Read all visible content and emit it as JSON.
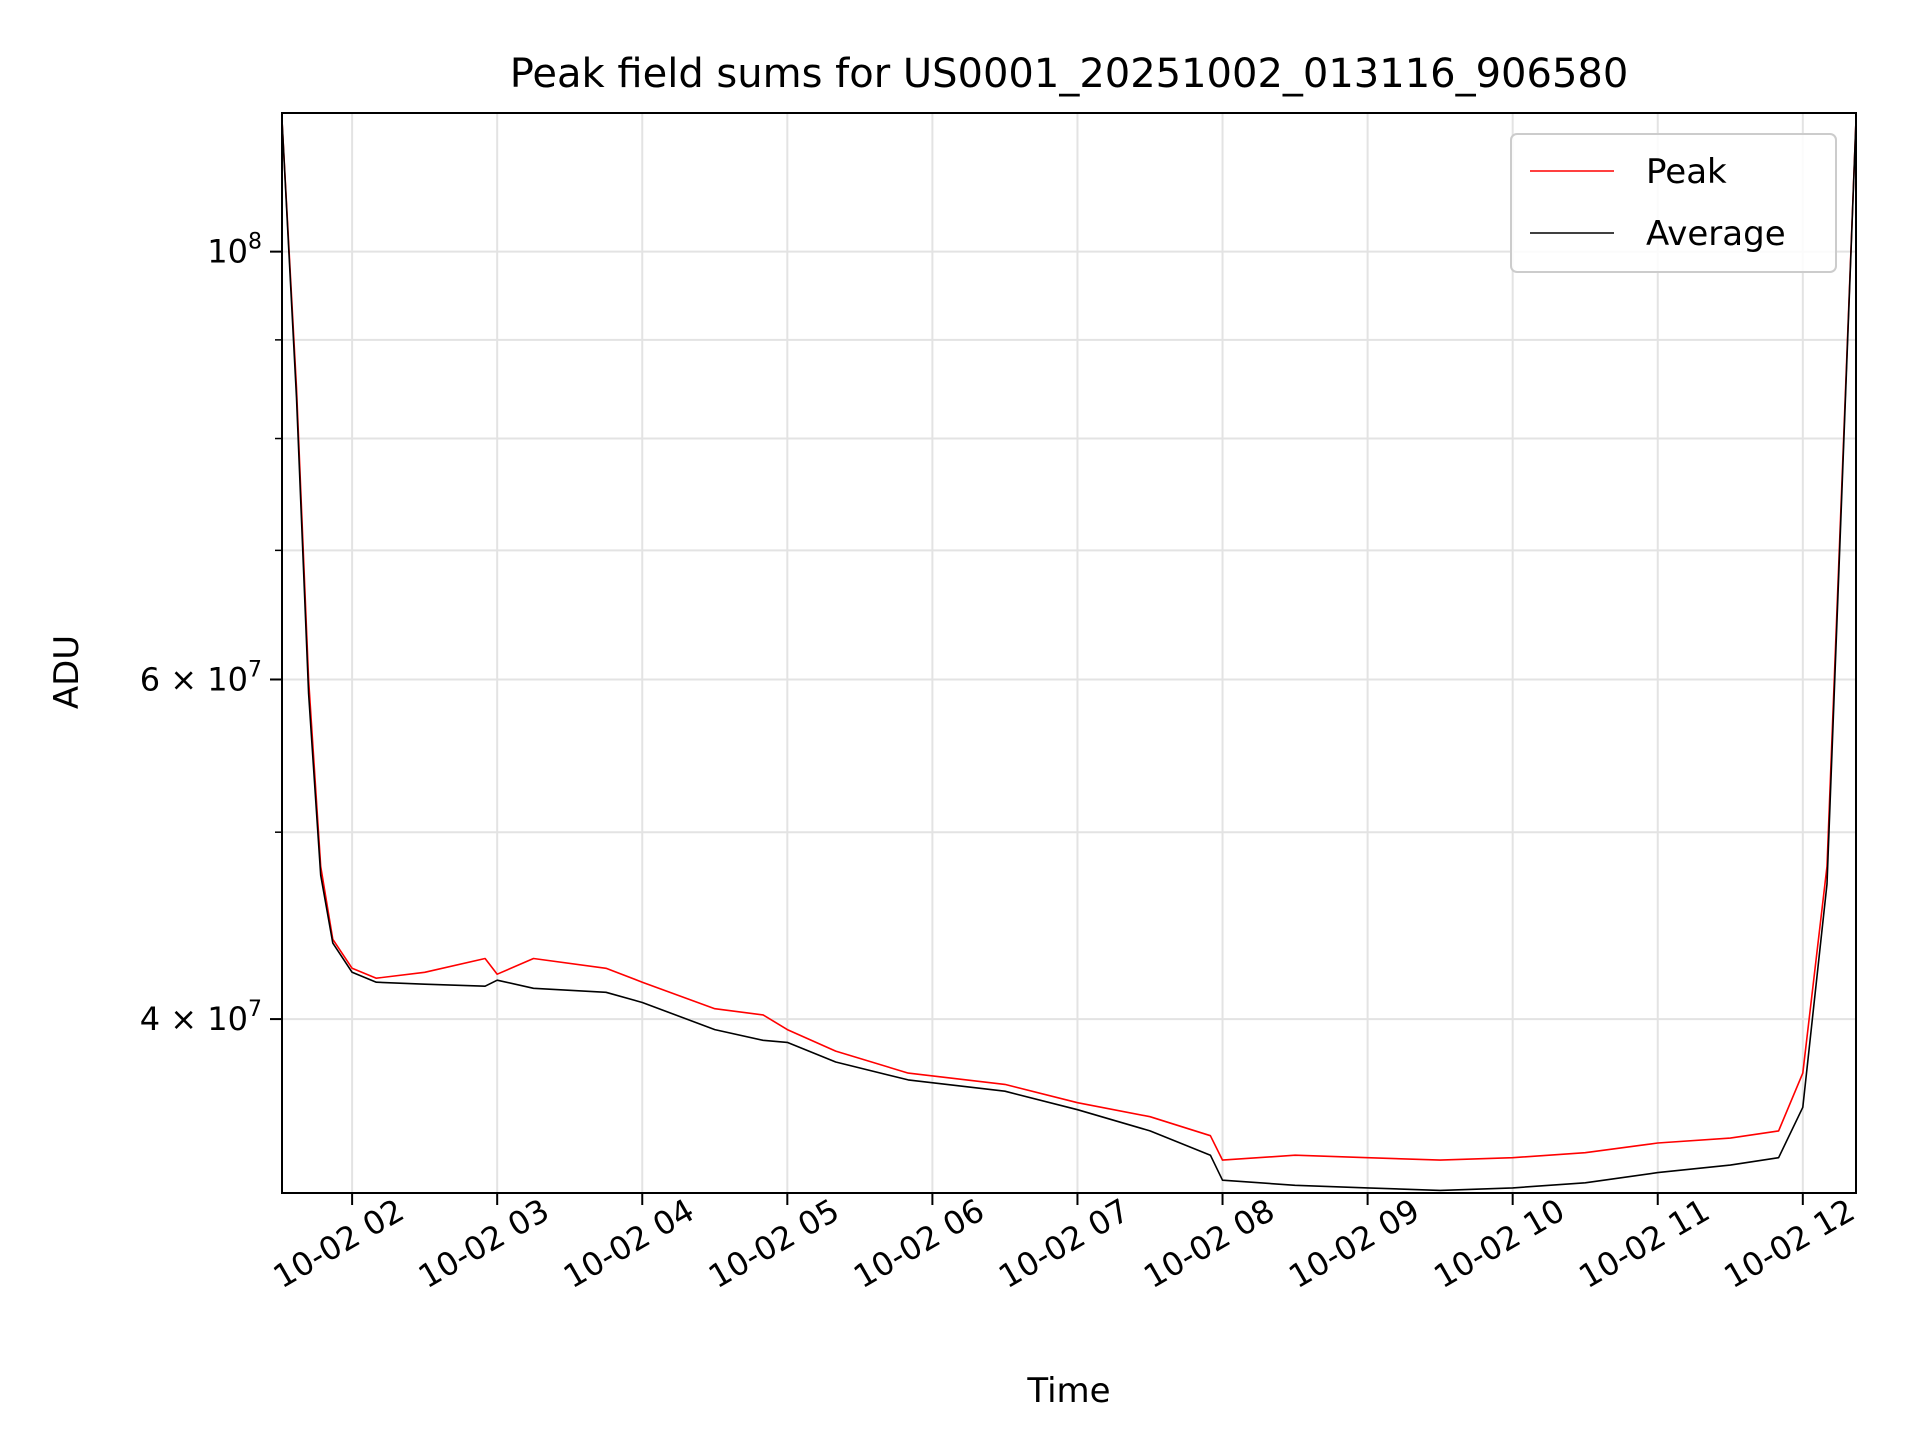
{
  "chart_data": {
    "type": "line",
    "title": "Peak field sums for US0001_20251002_013116_906580",
    "xlabel": "Time",
    "ylabel": "ADU",
    "yscale": "log",
    "xlim": [
      "2025-10-02T01:31",
      "2025-10-02T12:22"
    ],
    "ylim": [
      32500000,
      118000000
    ],
    "grid": true,
    "legend_position": "top-right",
    "x_ticks": [
      {
        "t": "2025-10-02T02:00",
        "label": "10-02 02"
      },
      {
        "t": "2025-10-02T03:00",
        "label": "10-02 03"
      },
      {
        "t": "2025-10-02T04:00",
        "label": "10-02 04"
      },
      {
        "t": "2025-10-02T05:00",
        "label": "10-02 05"
      },
      {
        "t": "2025-10-02T06:00",
        "label": "10-02 06"
      },
      {
        "t": "2025-10-02T07:00",
        "label": "10-02 07"
      },
      {
        "t": "2025-10-02T08:00",
        "label": "10-02 08"
      },
      {
        "t": "2025-10-02T09:00",
        "label": "10-02 09"
      },
      {
        "t": "2025-10-02T10:00",
        "label": "10-02 10"
      },
      {
        "t": "2025-10-02T11:00",
        "label": "10-02 11"
      },
      {
        "t": "2025-10-02T12:00",
        "label": "10-02 12"
      }
    ],
    "y_major_ticks": [
      {
        "value": 40000000,
        "mantissa": "4",
        "exponent": "7"
      },
      {
        "value": 60000000,
        "mantissa": "6",
        "exponent": "7"
      },
      {
        "value": 100000000,
        "mantissa": "",
        "exponent": "8"
      }
    ],
    "y_minor_ticks": [
      50000000,
      70000000,
      80000000,
      90000000
    ],
    "series": [
      {
        "name": "Peak",
        "color": "#ff0000",
        "x": [
          "2025-10-02T01:31",
          "2025-10-02T01:37",
          "2025-10-02T01:42",
          "2025-10-02T01:47",
          "2025-10-02T01:52",
          "2025-10-02T02:00",
          "2025-10-02T02:10",
          "2025-10-02T02:30",
          "2025-10-02T02:55",
          "2025-10-02T03:00",
          "2025-10-02T03:15",
          "2025-10-02T03:45",
          "2025-10-02T04:00",
          "2025-10-02T04:30",
          "2025-10-02T04:50",
          "2025-10-02T05:00",
          "2025-10-02T05:20",
          "2025-10-02T05:50",
          "2025-10-02T06:30",
          "2025-10-02T07:00",
          "2025-10-02T07:30",
          "2025-10-02T07:55",
          "2025-10-02T08:00",
          "2025-10-02T08:30",
          "2025-10-02T09:00",
          "2025-10-02T09:30",
          "2025-10-02T10:00",
          "2025-10-02T10:30",
          "2025-10-02T11:00",
          "2025-10-02T11:30",
          "2025-10-02T11:50",
          "2025-10-02T12:00",
          "2025-10-02T12:10",
          "2025-10-02T12:22"
        ],
        "y": [
          117000000,
          85000000,
          60000000,
          48000000,
          44000000,
          42500000,
          42000000,
          42300000,
          43000000,
          42200000,
          43000000,
          42500000,
          41800000,
          40500000,
          40200000,
          39500000,
          38500000,
          37500000,
          37000000,
          36200000,
          35600000,
          34800000,
          33800000,
          34000000,
          33900000,
          33800000,
          33900000,
          34100000,
          34500000,
          34700000,
          35000000,
          37500000,
          48000000,
          117000000
        ]
      },
      {
        "name": "Average",
        "color": "#000000",
        "x": [
          "2025-10-02T01:31",
          "2025-10-02T01:37",
          "2025-10-02T01:42",
          "2025-10-02T01:47",
          "2025-10-02T01:52",
          "2025-10-02T02:00",
          "2025-10-02T02:10",
          "2025-10-02T02:30",
          "2025-10-02T02:55",
          "2025-10-02T03:00",
          "2025-10-02T03:15",
          "2025-10-02T03:45",
          "2025-10-02T04:00",
          "2025-10-02T04:30",
          "2025-10-02T04:50",
          "2025-10-02T05:00",
          "2025-10-02T05:20",
          "2025-10-02T05:50",
          "2025-10-02T06:30",
          "2025-10-02T07:00",
          "2025-10-02T07:30",
          "2025-10-02T07:55",
          "2025-10-02T08:00",
          "2025-10-02T08:30",
          "2025-10-02T09:00",
          "2025-10-02T09:30",
          "2025-10-02T10:00",
          "2025-10-02T10:30",
          "2025-10-02T11:00",
          "2025-10-02T11:30",
          "2025-10-02T11:50",
          "2025-10-02T12:00",
          "2025-10-02T12:10",
          "2025-10-02T12:22"
        ],
        "y": [
          117000000,
          84000000,
          59000000,
          47500000,
          43800000,
          42300000,
          41800000,
          41700000,
          41600000,
          41900000,
          41500000,
          41300000,
          40800000,
          39500000,
          39000000,
          38900000,
          38000000,
          37200000,
          36700000,
          35900000,
          35000000,
          34000000,
          33000000,
          32800000,
          32700000,
          32600000,
          32700000,
          32900000,
          33300000,
          33600000,
          33900000,
          36000000,
          47000000,
          117000000
        ]
      }
    ]
  }
}
